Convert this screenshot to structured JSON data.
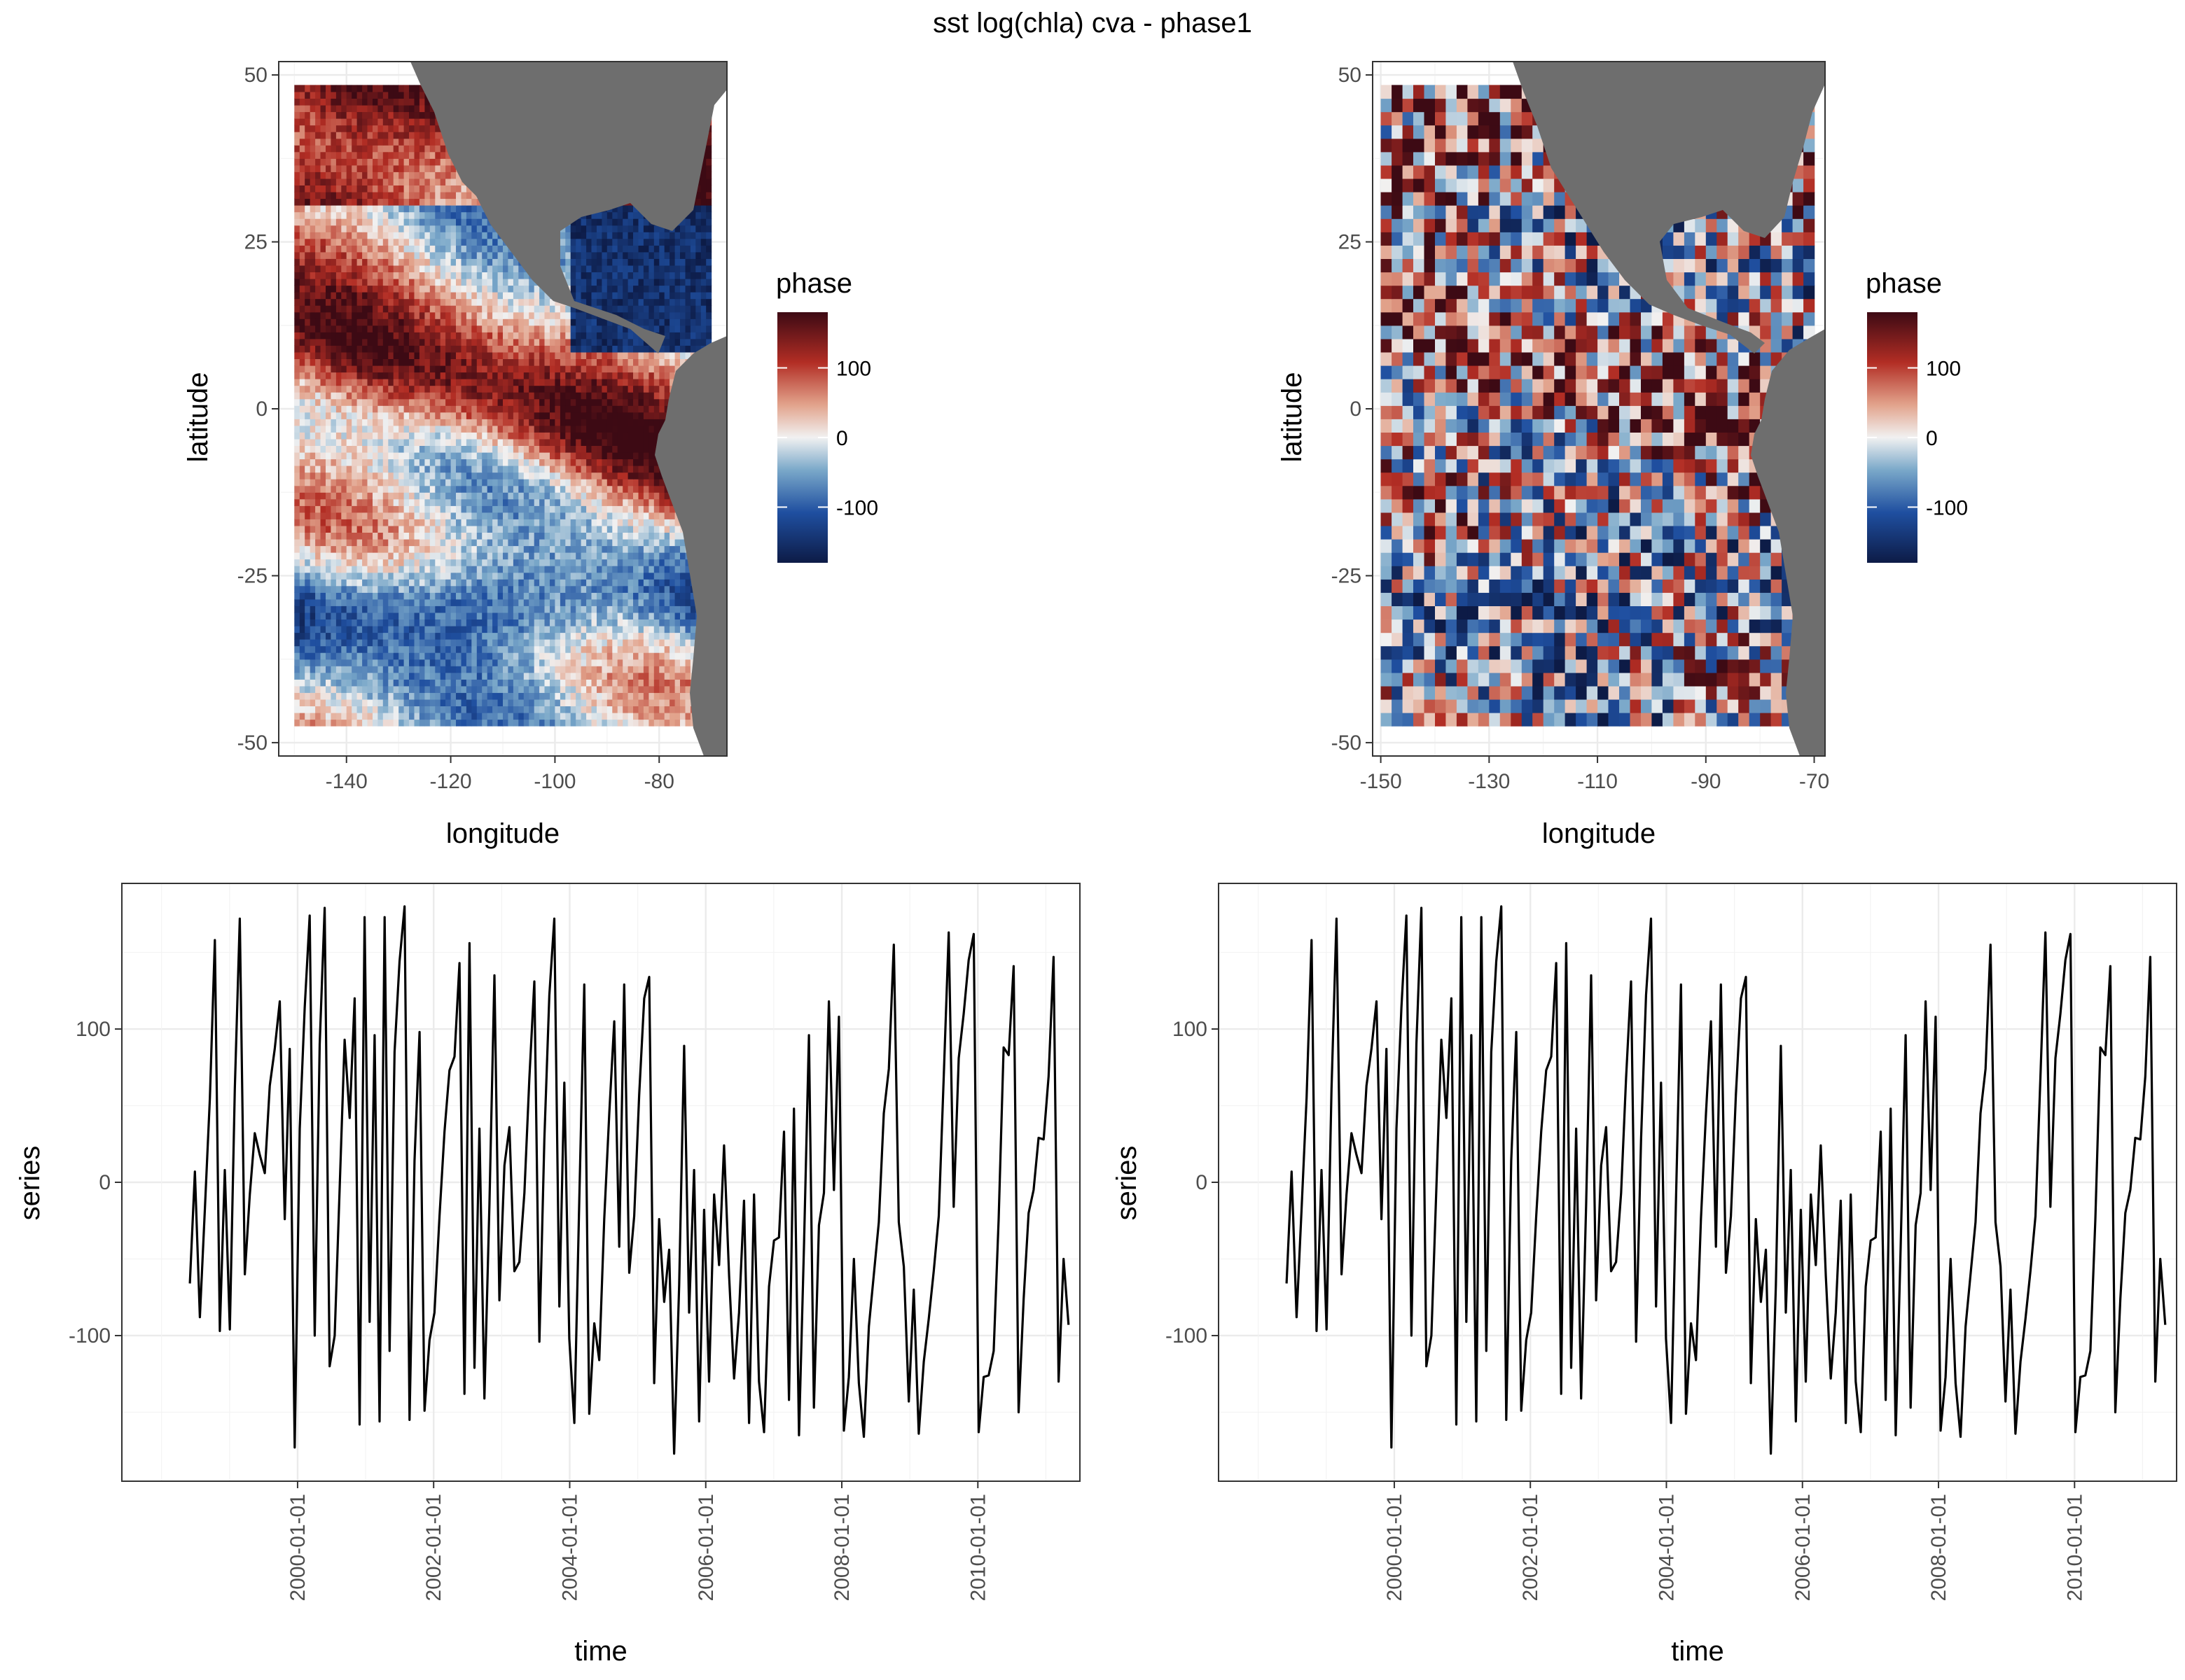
{
  "figure": {
    "title": "sst log(chla) cva - phase1"
  },
  "chart_data": [
    {
      "id": "map-left",
      "type": "heatmap",
      "xlabel": "longitude",
      "ylabel": "latitude",
      "xlim": [
        -153,
        -67
      ],
      "ylim": [
        -52,
        52
      ],
      "xticks": [
        -140,
        -120,
        -100,
        -80
      ],
      "yticks": [
        -50,
        -25,
        0,
        25,
        50
      ],
      "xtick_labels": [
        "-140",
        "-120",
        "-100",
        "-80"
      ],
      "ytick_labels": [
        "-50",
        "-25",
        "0",
        "25",
        "50"
      ],
      "legend": {
        "title": "phase",
        "breaks": [
          100,
          0,
          -100
        ],
        "labels": [
          "100",
          "0",
          "-100"
        ],
        "range": [
          -180,
          180
        ],
        "placement": "right"
      },
      "colors": {
        "low": "#0d1b46",
        "mid": "#f1f1f1",
        "high": "#3d0a14",
        "land": "#6e6e6e"
      },
      "grid": true
    },
    {
      "id": "map-right",
      "type": "heatmap",
      "xlabel": "longitude",
      "ylabel": "latitude",
      "xlim": [
        -151.5,
        -68
      ],
      "ylim": [
        -52,
        52
      ],
      "xticks": [
        -150,
        -130,
        -110,
        -90,
        -70
      ],
      "yticks": [
        -50,
        -25,
        0,
        25,
        50
      ],
      "xtick_labels": [
        "-150",
        "-130",
        "-110",
        "-90",
        "-70"
      ],
      "ytick_labels": [
        "-50",
        "-25",
        "0",
        "25",
        "50"
      ],
      "legend": {
        "title": "phase",
        "breaks": [
          100,
          0,
          -100
        ],
        "labels": [
          "100",
          "0",
          "-100"
        ],
        "range": [
          -180,
          180
        ],
        "placement": "right"
      },
      "colors": {
        "low": "#0d1b46",
        "mid": "#f1f1f1",
        "high": "#3d0a14",
        "land": "#6e6e6e"
      },
      "grid": true
    },
    {
      "id": "series-left",
      "type": "line",
      "xlabel": "time",
      "ylabel": "series",
      "xlim": [
        "1997-06-01",
        "2011-07-01"
      ],
      "ylim": [
        -195,
        195
      ],
      "xtick_labels": [
        "2000-01-01",
        "2002-01-01",
        "2004-01-01",
        "2006-01-01",
        "2008-01-01",
        "2010-01-01"
      ],
      "yticks": [
        -100,
        0,
        100
      ],
      "ytick_labels": [
        "-100",
        "0",
        "100"
      ],
      "grid": true,
      "line_color": "#000000",
      "x_start": "1998-06",
      "x_end": "2011-05",
      "values": [
        -66,
        7,
        -88,
        -18,
        55,
        158,
        -97,
        8,
        -96,
        61,
        172,
        -60,
        -8,
        32,
        18,
        6,
        63,
        87,
        118,
        -24,
        87,
        -173,
        35,
        114,
        174,
        -100,
        90,
        179,
        -120,
        -100,
        -4,
        93,
        42,
        120,
        -158,
        173,
        -91,
        96,
        -156,
        173,
        -110,
        85,
        144,
        180,
        -155,
        14,
        98,
        -149,
        -103,
        -85,
        -22,
        33,
        73,
        82,
        143,
        -138,
        156,
        -121,
        35,
        -141,
        -14,
        135,
        -77,
        11,
        36,
        -58,
        -52,
        -7,
        68,
        131,
        -104,
        28,
        122,
        172,
        -81,
        65,
        -102,
        -157,
        -11,
        129,
        -151,
        -92,
        -116,
        -24,
        45,
        105,
        -42,
        129,
        -59,
        -22,
        57,
        120,
        134,
        -131,
        -24,
        -78,
        -44,
        -177,
        -67,
        89,
        -85,
        8,
        -156,
        -18,
        -130,
        -8,
        -54,
        24,
        -61,
        -128,
        -85,
        -12,
        -157,
        -8,
        -130,
        -163,
        -68,
        -38,
        -36,
        33,
        -142,
        48,
        -165,
        -42,
        96,
        -147,
        -28,
        -7,
        118,
        -5,
        108,
        -162,
        -127,
        -50,
        -131,
        -166,
        -94,
        -60,
        -26,
        45,
        74,
        155,
        -26,
        -55,
        -143,
        -70,
        -164,
        -117,
        -89,
        -58,
        -22,
        69,
        163,
        -16,
        81,
        110,
        145,
        162,
        -163,
        -127,
        -126,
        -110,
        -24,
        88,
        83,
        141,
        -150,
        -76,
        -20,
        -5,
        29,
        28,
        69,
        147,
        -130,
        -50,
        -93
      ]
    },
    {
      "id": "series-right",
      "type": "line",
      "xlabel": "time",
      "ylabel": "series",
      "xlim": [
        "1997-06-01",
        "2011-07-01"
      ],
      "ylim": [
        -195,
        195
      ],
      "xtick_labels": [
        "2000-01-01",
        "2002-01-01",
        "2004-01-01",
        "2006-01-01",
        "2008-01-01",
        "2010-01-01"
      ],
      "yticks": [
        -100,
        0,
        100
      ],
      "ytick_labels": [
        "-100",
        "0",
        "100"
      ],
      "grid": true,
      "line_color": "#000000",
      "x_start": "1998-06",
      "x_end": "2011-05",
      "values": [
        -66,
        7,
        -88,
        -18,
        55,
        158,
        -97,
        8,
        -96,
        61,
        172,
        -60,
        -8,
        32,
        18,
        6,
        63,
        87,
        118,
        -24,
        87,
        -173,
        35,
        114,
        174,
        -100,
        90,
        179,
        -120,
        -100,
        -4,
        93,
        42,
        120,
        -158,
        173,
        -91,
        96,
        -156,
        173,
        -110,
        85,
        144,
        180,
        -155,
        14,
        98,
        -149,
        -103,
        -85,
        -22,
        33,
        73,
        82,
        143,
        -138,
        156,
        -121,
        35,
        -141,
        -14,
        135,
        -77,
        11,
        36,
        -58,
        -52,
        -7,
        68,
        131,
        -104,
        28,
        122,
        172,
        -81,
        65,
        -102,
        -157,
        -11,
        129,
        -151,
        -92,
        -116,
        -24,
        45,
        105,
        -42,
        129,
        -59,
        -22,
        57,
        120,
        134,
        -131,
        -24,
        -78,
        -44,
        -177,
        -67,
        89,
        -85,
        8,
        -156,
        -18,
        -130,
        -8,
        -54,
        24,
        -61,
        -128,
        -85,
        -12,
        -157,
        -8,
        -130,
        -163,
        -68,
        -38,
        -36,
        33,
        -142,
        48,
        -165,
        -42,
        96,
        -147,
        -28,
        -7,
        118,
        -5,
        108,
        -162,
        -127,
        -50,
        -131,
        -166,
        -94,
        -60,
        -26,
        45,
        74,
        155,
        -26,
        -55,
        -143,
        -70,
        -164,
        -117,
        -89,
        -58,
        -22,
        69,
        163,
        -16,
        81,
        110,
        145,
        162,
        -163,
        -127,
        -126,
        -110,
        -24,
        88,
        83,
        141,
        -150,
        -76,
        -20,
        -5,
        29,
        28,
        69,
        147,
        -130,
        -50,
        -93
      ]
    }
  ]
}
